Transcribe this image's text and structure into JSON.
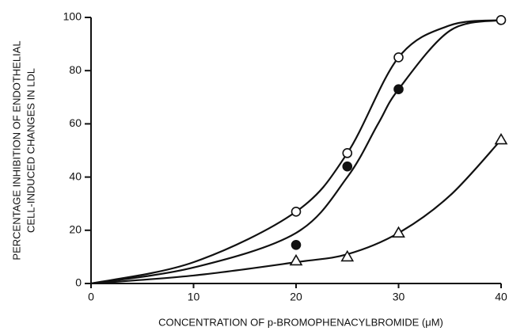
{
  "chart_data": {
    "type": "scatter",
    "xlabel": "CONCENTRATION OF p-BROMOPHENACYLBROMIDE (μM)",
    "ylabel": [
      "PERCENTAGE INHIBITION OF ENDOTHELIAL",
      "CELL-INDUCED CHANGES IN LDL"
    ],
    "xlim": [
      0,
      40
    ],
    "ylim": [
      0,
      100
    ],
    "xticks": [
      0,
      10,
      20,
      30,
      40
    ],
    "yticks": [
      0,
      20,
      40,
      60,
      80,
      100
    ],
    "series": [
      {
        "marker": "open-circle",
        "color": "#111",
        "x": [
          20,
          25,
          30,
          40
        ],
        "values": [
          27,
          49,
          85,
          99
        ]
      },
      {
        "marker": "filled-circle",
        "color": "#111",
        "x": [
          20,
          25,
          30
        ],
        "values": [
          14.5,
          44,
          73
        ]
      },
      {
        "marker": "open-triangle",
        "color": "#111",
        "x": [
          20,
          25,
          30,
          40
        ],
        "values": [
          8.5,
          10,
          19,
          54
        ]
      }
    ],
    "curves": [
      {
        "x": [
          0,
          10,
          20,
          25,
          30,
          35,
          40
        ],
        "values": [
          0,
          8,
          27,
          49,
          85,
          97,
          99
        ]
      },
      {
        "x": [
          0,
          10,
          20,
          25,
          28,
          30,
          35,
          40
        ],
        "values": [
          0,
          6,
          19,
          40,
          60,
          73,
          95,
          99
        ]
      },
      {
        "x": [
          0,
          10,
          20,
          25,
          30,
          35,
          40
        ],
        "values": [
          0,
          3,
          8,
          11,
          19,
          33,
          54
        ]
      }
    ]
  }
}
